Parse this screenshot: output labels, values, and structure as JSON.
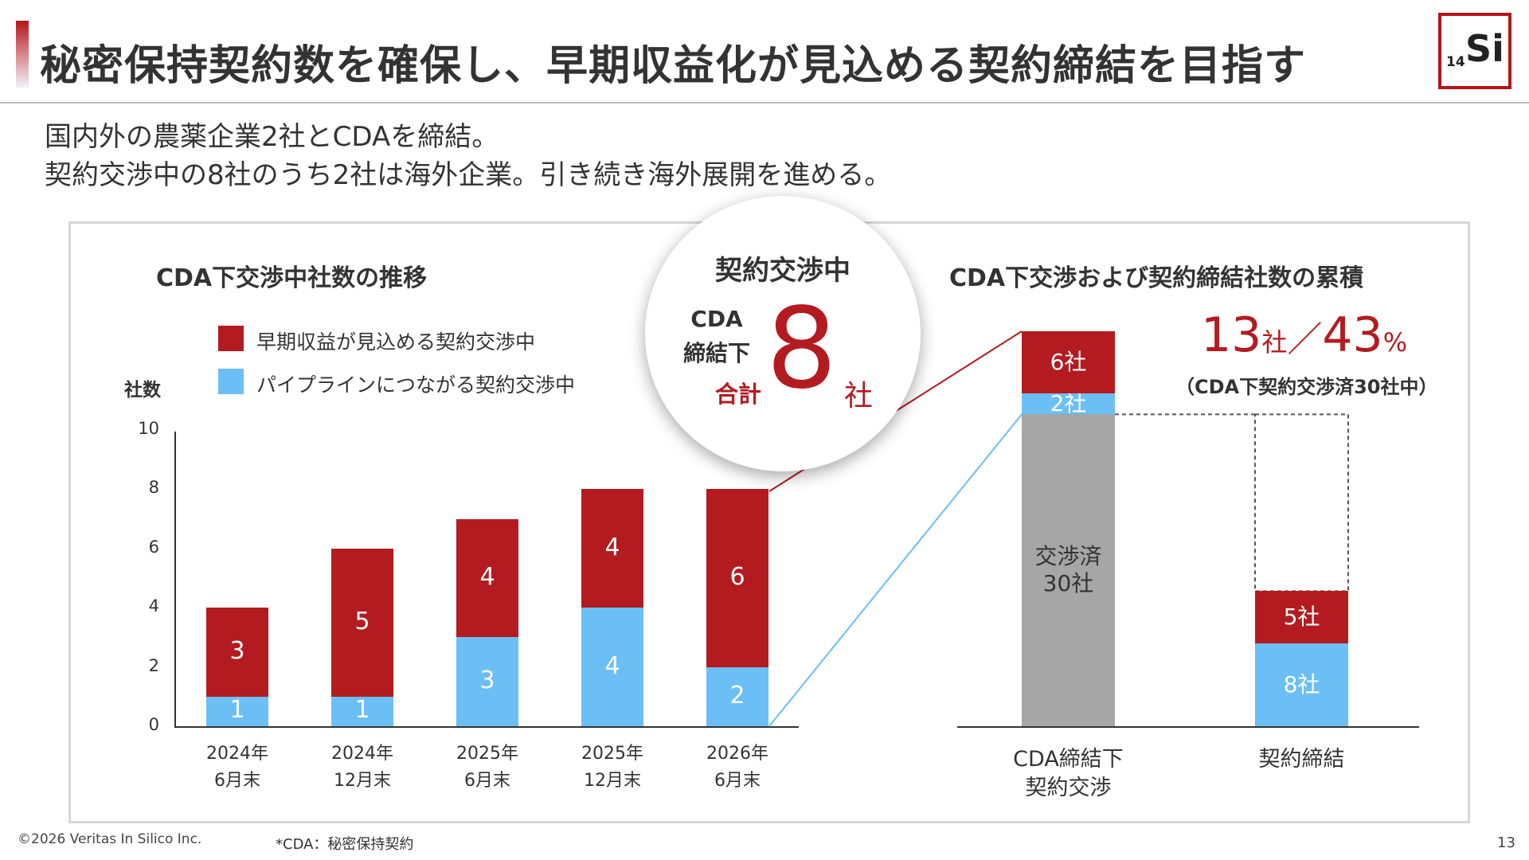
{
  "slide": {
    "title": "秘密保持契約数を確保し、早期収益化が見込める契約締結を目指す",
    "logo_sub": "14",
    "logo_symbol": "Si",
    "lead_line1": "国内外の農薬企業2社とCDAを締結。",
    "lead_line2": "契約交渉中の8社のうち2社は海外企業。引き続き海外展開を進める。",
    "footer_copyright": "©2026 Veritas In Silico Inc.",
    "footer_note": "*CDA：秘密保持契約",
    "page_number": "13",
    "accent_color": "#b3151b"
  },
  "bubble": {
    "heading": "契約交渉中",
    "label_line1": "CDA",
    "label_line2": "締結下",
    "total_label": "合計",
    "total_value": "8",
    "unit": "社"
  },
  "right_summary": {
    "companies": "13",
    "companies_unit": "社",
    "separator": "／",
    "percent": "43",
    "percent_unit": "%",
    "note": "（CDA下契約交渉済30社中）"
  },
  "chart_data": [
    {
      "type": "bar",
      "stacked": true,
      "title": "CDA下交渉中社数の推移",
      "ylabel": "社数",
      "ylim": [
        0,
        10
      ],
      "yticks": [
        "0",
        "2",
        "4",
        "6",
        "8",
        "10"
      ],
      "categories": [
        [
          "2024年",
          "6月末"
        ],
        [
          "2024年",
          "12月末"
        ],
        [
          "2025年",
          "6月末"
        ],
        [
          "2025年",
          "12月末"
        ],
        [
          "2026年",
          "6月末"
        ]
      ],
      "series": [
        {
          "name": "パイプラインにつながる契約交渉中",
          "color": "#6bbff5",
          "values": [
            1,
            1,
            3,
            4,
            2
          ]
        },
        {
          "name": "早期収益が見込める契約交渉中",
          "color": "#b31b20",
          "values": [
            3,
            5,
            4,
            4,
            6
          ]
        }
      ],
      "legend_order": [
        1,
        0
      ],
      "legend_position": "top-left",
      "grid": false
    },
    {
      "type": "bar",
      "stacked": true,
      "title": "CDA下交渉および契約締結社数の累積",
      "categories": [
        [
          "CDA締結下",
          "契約交渉"
        ],
        [
          "契約締結"
        ]
      ],
      "total_reference": 38,
      "bars": [
        {
          "category_index": 0,
          "segments": [
            {
              "value": 30,
              "label_lines": [
                "交渉済",
                "30社"
              ],
              "color": "#a6a6a6",
              "text_color": "#333333"
            },
            {
              "value": 2,
              "label_lines": [
                "2社"
              ],
              "color": "#6bbff5",
              "text_color": "#ffffff"
            },
            {
              "value": 6,
              "label_lines": [
                "6社"
              ],
              "color": "#b31b20",
              "text_color": "#ffffff"
            }
          ]
        },
        {
          "category_index": 1,
          "segments": [
            {
              "value": 8,
              "label_lines": [
                "8社"
              ],
              "color": "#6bbff5",
              "text_color": "#ffffff"
            },
            {
              "value": 5,
              "label_lines": [
                "5社"
              ],
              "color": "#b31b20",
              "text_color": "#ffffff"
            }
          ],
          "dashed_outline_to": 30
        }
      ]
    }
  ]
}
